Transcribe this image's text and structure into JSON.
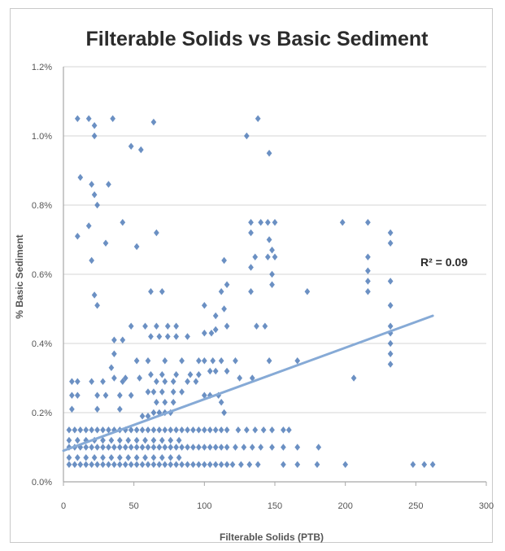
{
  "chart_data": {
    "type": "scatter",
    "title": "Filterable Solids vs Basic Sediment",
    "xlabel": "Filterable Solids (PTB)",
    "ylabel": "% Basic Sediment",
    "xlim": [
      0,
      300
    ],
    "ylim": [
      0,
      1.2
    ],
    "x_ticks": [
      0,
      50,
      100,
      150,
      200,
      250,
      300
    ],
    "x_tick_labels": [
      "0",
      "50",
      "100",
      "150",
      "200",
      "250",
      "300"
    ],
    "y_ticks": [
      0,
      0.2,
      0.4,
      0.6,
      0.8,
      1.0,
      1.2
    ],
    "y_tick_labels": [
      "0.0%",
      "0.2%",
      "0.4%",
      "0.6%",
      "0.8%",
      "1.0%",
      "1.2%"
    ],
    "grid": true,
    "marker": "diamond",
    "colors": {
      "points": "#4a78b6",
      "trendline": "#86aad6",
      "grid": "#d4d4d4",
      "axis": "#a8a8a8"
    },
    "trendline": {
      "type": "linear",
      "x_start": 0,
      "y_start": 0.09,
      "x_end": 262,
      "y_end": 0.48
    },
    "annotation": "R² = 0.09",
    "series": [
      {
        "points": [
          [
            10,
            1.05
          ],
          [
            18,
            1.05
          ],
          [
            22,
            1.03
          ],
          [
            35,
            1.05
          ],
          [
            22,
            1.0
          ],
          [
            48,
            0.97
          ],
          [
            55,
            0.96
          ],
          [
            64,
            1.04
          ],
          [
            130,
            1.0
          ],
          [
            138,
            1.05
          ],
          [
            146,
            0.95
          ],
          [
            12,
            0.88
          ],
          [
            20,
            0.86
          ],
          [
            32,
            0.86
          ],
          [
            22,
            0.83
          ],
          [
            24,
            0.8
          ],
          [
            10,
            0.71
          ],
          [
            18,
            0.74
          ],
          [
            30,
            0.69
          ],
          [
            42,
            0.75
          ],
          [
            52,
            0.68
          ],
          [
            66,
            0.72
          ],
          [
            20,
            0.64
          ],
          [
            133,
            0.75
          ],
          [
            140,
            0.75
          ],
          [
            145,
            0.75
          ],
          [
            150,
            0.75
          ],
          [
            133,
            0.72
          ],
          [
            146,
            0.7
          ],
          [
            148,
            0.67
          ],
          [
            136,
            0.65
          ],
          [
            145,
            0.65
          ],
          [
            150,
            0.65
          ],
          [
            133,
            0.62
          ],
          [
            148,
            0.6
          ],
          [
            198,
            0.75
          ],
          [
            216,
            0.75
          ],
          [
            232,
            0.72
          ],
          [
            232,
            0.69
          ],
          [
            216,
            0.65
          ],
          [
            216,
            0.61
          ],
          [
            216,
            0.58
          ],
          [
            232,
            0.58
          ],
          [
            148,
            0.57
          ],
          [
            133,
            0.55
          ],
          [
            173,
            0.55
          ],
          [
            216,
            0.55
          ],
          [
            232,
            0.51
          ],
          [
            114,
            0.64
          ],
          [
            116,
            0.57
          ],
          [
            112,
            0.55
          ],
          [
            22,
            0.54
          ],
          [
            24,
            0.51
          ],
          [
            62,
            0.55
          ],
          [
            70,
            0.55
          ],
          [
            100,
            0.51
          ],
          [
            108,
            0.48
          ],
          [
            114,
            0.5
          ],
          [
            137,
            0.45
          ],
          [
            143,
            0.45
          ],
          [
            232,
            0.45
          ],
          [
            232,
            0.43
          ],
          [
            232,
            0.4
          ],
          [
            232,
            0.37
          ],
          [
            232,
            0.34
          ],
          [
            58,
            0.45
          ],
          [
            48,
            0.45
          ],
          [
            66,
            0.45
          ],
          [
            74,
            0.45
          ],
          [
            80,
            0.45
          ],
          [
            62,
            0.42
          ],
          [
            68,
            0.42
          ],
          [
            74,
            0.42
          ],
          [
            80,
            0.42
          ],
          [
            88,
            0.42
          ],
          [
            100,
            0.43
          ],
          [
            105,
            0.43
          ],
          [
            108,
            0.44
          ],
          [
            116,
            0.45
          ],
          [
            36,
            0.41
          ],
          [
            42,
            0.41
          ],
          [
            36,
            0.37
          ],
          [
            52,
            0.35
          ],
          [
            60,
            0.35
          ],
          [
            72,
            0.35
          ],
          [
            84,
            0.35
          ],
          [
            96,
            0.35
          ],
          [
            100,
            0.35
          ],
          [
            106,
            0.35
          ],
          [
            112,
            0.35
          ],
          [
            122,
            0.35
          ],
          [
            146,
            0.35
          ],
          [
            166,
            0.35
          ],
          [
            34,
            0.33
          ],
          [
            36,
            0.3
          ],
          [
            44,
            0.3
          ],
          [
            54,
            0.3
          ],
          [
            62,
            0.31
          ],
          [
            70,
            0.31
          ],
          [
            80,
            0.31
          ],
          [
            90,
            0.31
          ],
          [
            96,
            0.31
          ],
          [
            104,
            0.32
          ],
          [
            108,
            0.32
          ],
          [
            116,
            0.32
          ],
          [
            125,
            0.3
          ],
          [
            134,
            0.3
          ],
          [
            6,
            0.29
          ],
          [
            10,
            0.29
          ],
          [
            20,
            0.29
          ],
          [
            28,
            0.29
          ],
          [
            42,
            0.29
          ],
          [
            66,
            0.29
          ],
          [
            72,
            0.29
          ],
          [
            78,
            0.29
          ],
          [
            88,
            0.29
          ],
          [
            94,
            0.29
          ],
          [
            206,
            0.3
          ],
          [
            60,
            0.26
          ],
          [
            64,
            0.26
          ],
          [
            70,
            0.26
          ],
          [
            78,
            0.26
          ],
          [
            84,
            0.26
          ],
          [
            66,
            0.23
          ],
          [
            72,
            0.23
          ],
          [
            78,
            0.23
          ],
          [
            64,
            0.2
          ],
          [
            68,
            0.2
          ],
          [
            72,
            0.2
          ],
          [
            76,
            0.2
          ],
          [
            56,
            0.19
          ],
          [
            60,
            0.19
          ],
          [
            6,
            0.25
          ],
          [
            10,
            0.25
          ],
          [
            24,
            0.25
          ],
          [
            30,
            0.25
          ],
          [
            40,
            0.25
          ],
          [
            48,
            0.25
          ],
          [
            100,
            0.25
          ],
          [
            104,
            0.25
          ],
          [
            110,
            0.25
          ],
          [
            114,
            0.2
          ],
          [
            112,
            0.23
          ],
          [
            6,
            0.21
          ],
          [
            24,
            0.21
          ],
          [
            40,
            0.21
          ],
          [
            4,
            0.15
          ],
          [
            8,
            0.15
          ],
          [
            12,
            0.15
          ],
          [
            16,
            0.15
          ],
          [
            20,
            0.15
          ],
          [
            24,
            0.15
          ],
          [
            28,
            0.15
          ],
          [
            32,
            0.15
          ],
          [
            36,
            0.15
          ],
          [
            40,
            0.15
          ],
          [
            44,
            0.15
          ],
          [
            48,
            0.15
          ],
          [
            52,
            0.15
          ],
          [
            56,
            0.15
          ],
          [
            60,
            0.15
          ],
          [
            64,
            0.15
          ],
          [
            68,
            0.15
          ],
          [
            72,
            0.15
          ],
          [
            76,
            0.15
          ],
          [
            80,
            0.15
          ],
          [
            84,
            0.15
          ],
          [
            88,
            0.15
          ],
          [
            92,
            0.15
          ],
          [
            96,
            0.15
          ],
          [
            100,
            0.15
          ],
          [
            104,
            0.15
          ],
          [
            108,
            0.15
          ],
          [
            112,
            0.15
          ],
          [
            116,
            0.15
          ],
          [
            124,
            0.15
          ],
          [
            130,
            0.15
          ],
          [
            136,
            0.15
          ],
          [
            142,
            0.15
          ],
          [
            148,
            0.15
          ],
          [
            156,
            0.15
          ],
          [
            160,
            0.15
          ],
          [
            4,
            0.12
          ],
          [
            10,
            0.12
          ],
          [
            16,
            0.12
          ],
          [
            22,
            0.12
          ],
          [
            28,
            0.12
          ],
          [
            34,
            0.12
          ],
          [
            40,
            0.12
          ],
          [
            46,
            0.12
          ],
          [
            52,
            0.12
          ],
          [
            58,
            0.12
          ],
          [
            64,
            0.12
          ],
          [
            70,
            0.12
          ],
          [
            76,
            0.12
          ],
          [
            82,
            0.12
          ],
          [
            4,
            0.1
          ],
          [
            8,
            0.1
          ],
          [
            12,
            0.1
          ],
          [
            16,
            0.1
          ],
          [
            20,
            0.1
          ],
          [
            24,
            0.1
          ],
          [
            28,
            0.1
          ],
          [
            32,
            0.1
          ],
          [
            36,
            0.1
          ],
          [
            40,
            0.1
          ],
          [
            44,
            0.1
          ],
          [
            48,
            0.1
          ],
          [
            52,
            0.1
          ],
          [
            56,
            0.1
          ],
          [
            60,
            0.1
          ],
          [
            64,
            0.1
          ],
          [
            68,
            0.1
          ],
          [
            72,
            0.1
          ],
          [
            76,
            0.1
          ],
          [
            80,
            0.1
          ],
          [
            84,
            0.1
          ],
          [
            88,
            0.1
          ],
          [
            92,
            0.1
          ],
          [
            96,
            0.1
          ],
          [
            100,
            0.1
          ],
          [
            104,
            0.1
          ],
          [
            108,
            0.1
          ],
          [
            112,
            0.1
          ],
          [
            116,
            0.1
          ],
          [
            122,
            0.1
          ],
          [
            128,
            0.1
          ],
          [
            134,
            0.1
          ],
          [
            140,
            0.1
          ],
          [
            148,
            0.1
          ],
          [
            156,
            0.1
          ],
          [
            166,
            0.1
          ],
          [
            181,
            0.1
          ],
          [
            4,
            0.07
          ],
          [
            10,
            0.07
          ],
          [
            16,
            0.07
          ],
          [
            22,
            0.07
          ],
          [
            28,
            0.07
          ],
          [
            34,
            0.07
          ],
          [
            40,
            0.07
          ],
          [
            46,
            0.07
          ],
          [
            52,
            0.07
          ],
          [
            58,
            0.07
          ],
          [
            64,
            0.07
          ],
          [
            70,
            0.07
          ],
          [
            76,
            0.07
          ],
          [
            82,
            0.07
          ],
          [
            4,
            0.05
          ],
          [
            8,
            0.05
          ],
          [
            12,
            0.05
          ],
          [
            16,
            0.05
          ],
          [
            20,
            0.05
          ],
          [
            24,
            0.05
          ],
          [
            28,
            0.05
          ],
          [
            32,
            0.05
          ],
          [
            36,
            0.05
          ],
          [
            40,
            0.05
          ],
          [
            44,
            0.05
          ],
          [
            48,
            0.05
          ],
          [
            52,
            0.05
          ],
          [
            56,
            0.05
          ],
          [
            60,
            0.05
          ],
          [
            64,
            0.05
          ],
          [
            68,
            0.05
          ],
          [
            72,
            0.05
          ],
          [
            76,
            0.05
          ],
          [
            80,
            0.05
          ],
          [
            84,
            0.05
          ],
          [
            88,
            0.05
          ],
          [
            92,
            0.05
          ],
          [
            96,
            0.05
          ],
          [
            100,
            0.05
          ],
          [
            104,
            0.05
          ],
          [
            108,
            0.05
          ],
          [
            112,
            0.05
          ],
          [
            116,
            0.05
          ],
          [
            120,
            0.05
          ],
          [
            126,
            0.05
          ],
          [
            132,
            0.05
          ],
          [
            138,
            0.05
          ],
          [
            156,
            0.05
          ],
          [
            166,
            0.05
          ],
          [
            180,
            0.05
          ],
          [
            200,
            0.05
          ],
          [
            248,
            0.05
          ],
          [
            256,
            0.05
          ],
          [
            262,
            0.05
          ]
        ]
      }
    ]
  }
}
